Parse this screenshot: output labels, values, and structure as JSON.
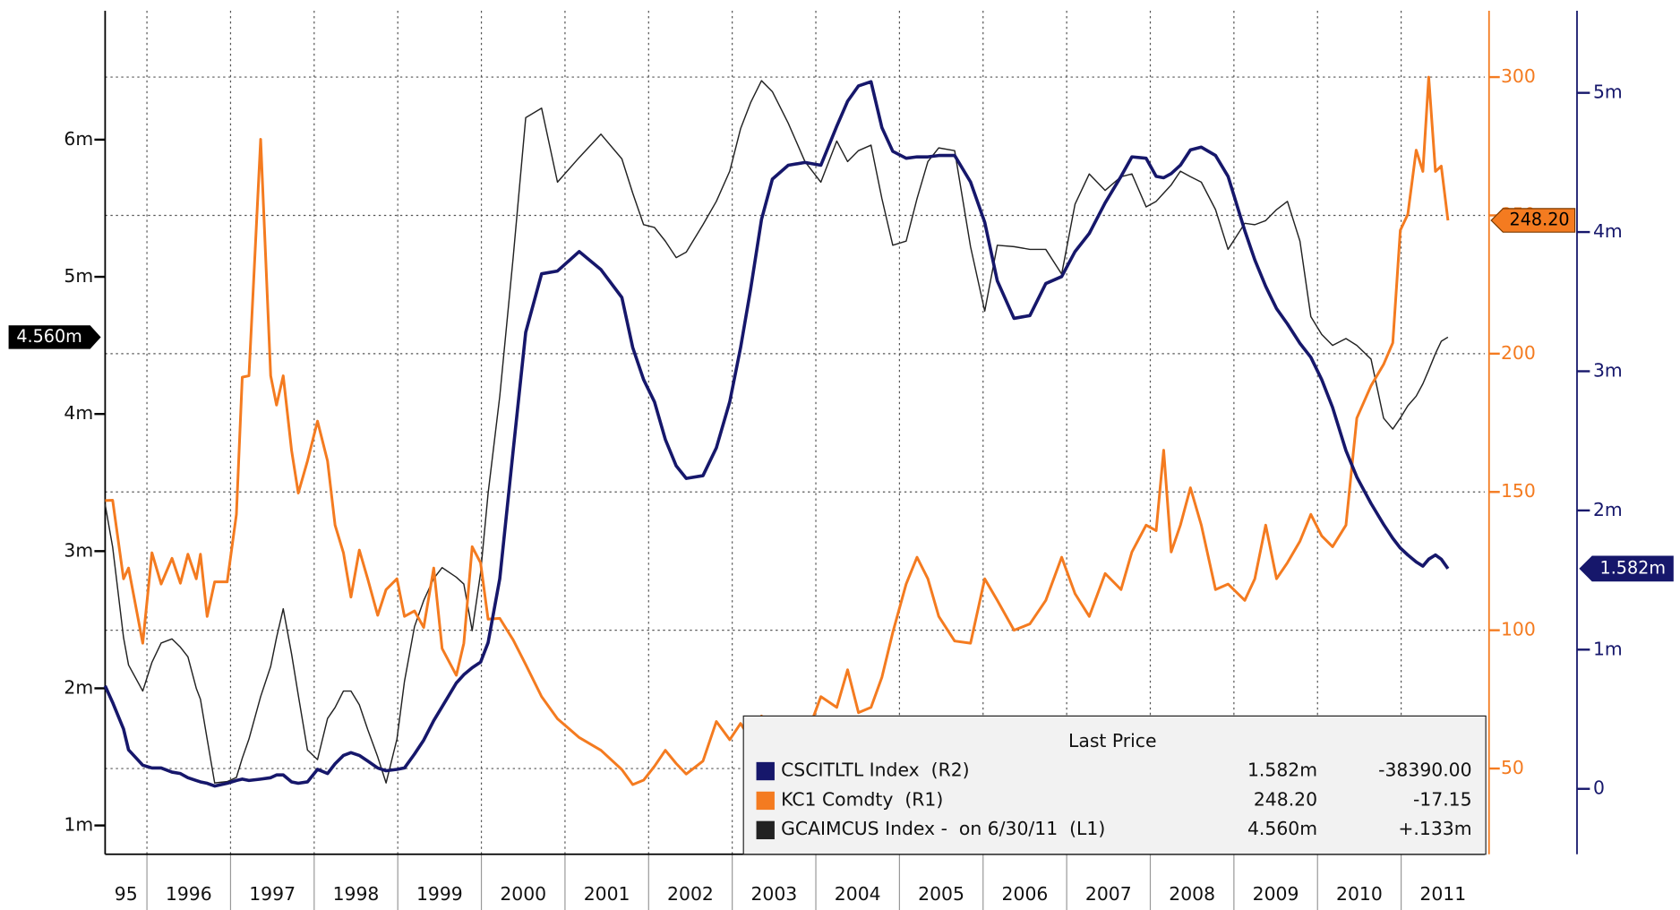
{
  "chart_data": {
    "type": "line",
    "grid": true,
    "xlim": [
      1995.5,
      2012
    ],
    "xticks": [
      {
        "value": 1995,
        "label": "95"
      },
      1996,
      1997,
      1998,
      1999,
      2000,
      2001,
      2002,
      2003,
      2004,
      2005,
      2006,
      2007,
      2008,
      2009,
      2010,
      2011
    ],
    "ylim": [
      0.79,
      6.94
    ],
    "yticks": [
      {
        "value": 1,
        "label": "1m"
      },
      {
        "value": 2,
        "label": "2m"
      },
      {
        "value": 3,
        "label": "3m"
      },
      {
        "value": 4,
        "label": "4m"
      },
      {
        "value": 5,
        "label": "5m"
      },
      {
        "value": 6,
        "label": "6m"
      }
    ],
    "y2lim": [
      19,
      324
    ],
    "y2ticks": [
      50,
      100,
      150,
      200,
      250,
      300
    ],
    "y3lim": [
      -0.47,
      5.59
    ],
    "y3ticks": [
      0,
      {
        "value": 1,
        "label": "1m"
      },
      {
        "value": 2,
        "label": "2m"
      },
      {
        "value": 3,
        "label": "3m"
      },
      {
        "value": 4,
        "label": "4m"
      },
      {
        "value": 5,
        "label": "5m"
      }
    ],
    "legend": {
      "title": "Last Price"
    },
    "x": [
      1995.5,
      1995.59,
      1995.72,
      1995.78,
      1995.95,
      1996.06,
      1996.17,
      1996.3,
      1996.4,
      1996.49,
      1996.59,
      1996.64,
      1996.72,
      1996.81,
      1996.96,
      1997.07,
      1997.14,
      1997.22,
      1997.36,
      1997.48,
      1997.55,
      1997.63,
      1997.73,
      1997.81,
      1997.92,
      1998.04,
      1998.16,
      1998.25,
      1998.35,
      1998.44,
      1998.54,
      1998.64,
      1998.76,
      1998.86,
      1998.99,
      1999.08,
      1999.2,
      1999.31,
      1999.43,
      1999.53,
      1999.7,
      1999.79,
      1999.89,
      1999.99,
      2000.08,
      2000.22,
      2000.38,
      2000.53,
      2000.72,
      2000.91,
      2001.17,
      2001.43,
      2001.68,
      2001.81,
      2001.94,
      2002.07,
      2002.2,
      2002.33,
      2002.45,
      2002.65,
      2002.81,
      2002.97,
      2003.1,
      2003.22,
      2003.35,
      2003.48,
      2003.67,
      2003.87,
      2004.06,
      2004.25,
      2004.38,
      2004.51,
      2004.66,
      2004.79,
      2004.92,
      2005.08,
      2005.21,
      2005.34,
      2005.47,
      2005.66,
      2005.85,
      2006.02,
      2006.17,
      2006.37,
      2006.56,
      2006.75,
      2006.94,
      2007.1,
      2007.27,
      2007.46,
      2007.65,
      2007.78,
      2007.95,
      2008.07,
      2008.16,
      2008.25,
      2008.36,
      2008.48,
      2008.61,
      2008.78,
      2008.93,
      2009.13,
      2009.25,
      2009.38,
      2009.51,
      2009.64,
      2009.79,
      2009.92,
      2010.05,
      2010.18,
      2010.34,
      2010.47,
      2010.64,
      2010.79,
      2010.9,
      2010.99,
      2011.08,
      2011.18,
      2011.26,
      2011.33,
      2011.41,
      2011.48,
      2011.56
    ],
    "series": [
      {
        "name": "CSCITLTL Index  (R2)",
        "color": "#16176b",
        "axis": "y3",
        "width": 3,
        "last_label": "1.582m",
        "change_label": "-38390.00",
        "values": [
          0.74,
          0.62,
          0.43,
          0.28,
          0.17,
          0.15,
          0.15,
          0.12,
          0.11,
          0.08,
          0.06,
          0.05,
          0.04,
          0.02,
          0.04,
          0.06,
          0.07,
          0.06,
          0.07,
          0.08,
          0.1,
          0.1,
          0.05,
          0.04,
          0.05,
          0.14,
          0.11,
          0.18,
          0.24,
          0.26,
          0.24,
          0.2,
          0.15,
          0.13,
          0.14,
          0.15,
          0.25,
          0.35,
          0.49,
          0.59,
          0.76,
          0.82,
          0.87,
          0.91,
          1.05,
          1.51,
          2.43,
          3.28,
          3.7,
          3.72,
          3.86,
          3.73,
          3.53,
          3.17,
          2.94,
          2.78,
          2.51,
          2.32,
          2.23,
          2.25,
          2.45,
          2.78,
          3.17,
          3.59,
          4.09,
          4.38,
          4.48,
          4.5,
          4.48,
          4.76,
          4.94,
          5.05,
          5.08,
          4.75,
          4.58,
          4.53,
          4.54,
          4.54,
          4.55,
          4.55,
          4.36,
          4.07,
          3.65,
          3.38,
          3.4,
          3.63,
          3.68,
          3.86,
          3.99,
          4.21,
          4.4,
          4.54,
          4.53,
          4.4,
          4.39,
          4.42,
          4.48,
          4.59,
          4.61,
          4.55,
          4.4,
          4.01,
          3.8,
          3.61,
          3.45,
          3.34,
          3.2,
          3.1,
          2.94,
          2.74,
          2.43,
          2.24,
          2.05,
          1.9,
          1.8,
          1.73,
          1.68,
          1.63,
          1.6,
          1.65,
          1.68,
          1.65,
          1.582
        ]
      },
      {
        "name": "KC1 Comdty  (R1)",
        "color": "#f47b20",
        "axis": "y2",
        "width": 2.5,
        "last_label": "248.20",
        "change_label": "-17.15",
        "values": [
          146.9,
          147,
          118.6,
          122.5,
          95.3,
          128,
          116.7,
          126,
          117,
          127.5,
          118.6,
          127.5,
          105,
          117.5,
          117.5,
          141.9,
          191.5,
          192,
          277.5,
          192,
          181.4,
          192,
          165,
          149.6,
          161.2,
          175.6,
          161.2,
          138,
          128,
          112,
          129,
          118.6,
          105.4,
          114.7,
          118.6,
          105,
          107,
          101,
          122.5,
          93.4,
          83.7,
          95.3,
          130.2,
          124.4,
          104,
          104.3,
          96.5,
          87.6,
          76,
          68,
          61.2,
          56.6,
          49.6,
          44.2,
          45.8,
          50.8,
          56.6,
          51.8,
          48,
          52.7,
          67,
          60.4,
          66.3,
          60.4,
          69,
          60.4,
          63.2,
          60.4,
          76,
          72.1,
          85.7,
          70.2,
          72.1,
          83,
          99.2,
          116.7,
          126.4,
          118.6,
          105,
          96.1,
          95.3,
          118.6,
          110.8,
          100,
          102.3,
          110.8,
          126.4,
          113.2,
          105,
          120.5,
          114.7,
          128.3,
          138,
          136,
          165.1,
          128.3,
          138,
          151.5,
          138,
          114.7,
          116.7,
          110.8,
          118.6,
          138,
          118.6,
          124.4,
          132.2,
          141.9,
          134.1,
          130.2,
          138,
          176.7,
          188.4,
          196.1,
          203.9,
          244.6,
          250.4,
          273.6,
          265.9,
          300,
          265.9,
          267.8,
          248.2
        ]
      },
      {
        "name": "GCAIMCUS Index -  on 6/30/11  (L1)",
        "color": "#222222",
        "axis": "y",
        "width": 1.2,
        "last_label": "4.560m",
        "change_label": "+.133m",
        "values": [
          3.34,
          3.03,
          2.37,
          2.17,
          1.98,
          2.19,
          2.33,
          2.36,
          2.3,
          2.23,
          2,
          1.92,
          1.63,
          1.31,
          1.32,
          1.35,
          1.49,
          1.63,
          1.94,
          2.16,
          2.37,
          2.58,
          2.25,
          1.95,
          1.55,
          1.48,
          1.78,
          1.86,
          1.98,
          1.98,
          1.88,
          1.7,
          1.5,
          1.31,
          1.63,
          2.05,
          2.45,
          2.64,
          2.8,
          2.88,
          2.81,
          2.76,
          2.42,
          2.84,
          3.42,
          4.13,
          5.14,
          6.16,
          6.23,
          5.69,
          5.87,
          6.04,
          5.86,
          5.61,
          5.38,
          5.36,
          5.26,
          5.14,
          5.18,
          5.38,
          5.55,
          5.77,
          6.08,
          6.27,
          6.43,
          6.35,
          6.12,
          5.84,
          5.69,
          5.99,
          5.84,
          5.92,
          5.96,
          5.57,
          5.23,
          5.26,
          5.57,
          5.84,
          5.94,
          5.92,
          5.22,
          4.75,
          5.23,
          5.22,
          5.2,
          5.2,
          5.02,
          5.53,
          5.75,
          5.63,
          5.73,
          5.75,
          5.51,
          5.55,
          5.61,
          5.67,
          5.77,
          5.73,
          5.69,
          5.49,
          5.2,
          5.39,
          5.38,
          5.41,
          5.49,
          5.55,
          5.26,
          4.71,
          4.58,
          4.5,
          4.55,
          4.5,
          4.4,
          3.97,
          3.89,
          3.97,
          4.06,
          4.13,
          4.22,
          4.32,
          4.44,
          4.53,
          4.56
        ]
      }
    ]
  }
}
